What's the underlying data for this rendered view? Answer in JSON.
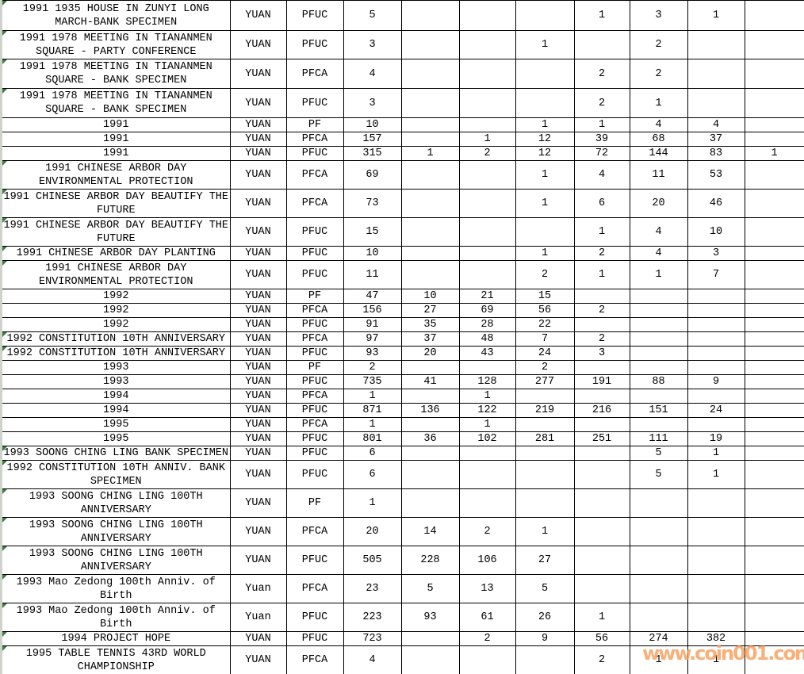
{
  "watermark": {
    "text": "www.coin001.com",
    "color": "#f69e5a"
  },
  "colors": {
    "grid_line": "#000000",
    "cell_background": "#ffffff",
    "comment_marker_green": "#3b7d3b",
    "edge_strip": "#cdd3cb",
    "watermark_orange": "#f69e5a"
  },
  "table": {
    "rows": [
      {
        "description": "1991 1935 HOUSE IN ZUNYI LONG\nMARCH-BANK SPECIMEN",
        "currency": "YUAN",
        "grade": "PFUC",
        "values": [
          "5",
          "",
          "",
          "",
          "1",
          "3",
          "1",
          ""
        ],
        "marker": true
      },
      {
        "description": "1991 1978 MEETING IN TIANANMEN\nSQUARE - PARTY CONFERENCE",
        "currency": "YUAN",
        "grade": "PFUC",
        "values": [
          "3",
          "",
          "",
          "1",
          "",
          "2",
          "",
          ""
        ],
        "marker": true
      },
      {
        "description": "1991 1978 MEETING IN TIANANMEN\nSQUARE - BANK SPECIMEN",
        "currency": "YUAN",
        "grade": "PFCA",
        "values": [
          "4",
          "",
          "",
          "",
          "2",
          "2",
          "",
          ""
        ],
        "marker": true
      },
      {
        "description": "1991 1978 MEETING IN TIANANMEN\nSQUARE - BANK SPECIMEN",
        "currency": "YUAN",
        "grade": "PFUC",
        "values": [
          "3",
          "",
          "",
          "",
          "2",
          "1",
          "",
          ""
        ],
        "marker": true
      },
      {
        "description": "1991",
        "currency": "YUAN",
        "grade": "PF",
        "values": [
          "10",
          "",
          "",
          "1",
          "1",
          "4",
          "4",
          ""
        ],
        "marker": false
      },
      {
        "description": "1991",
        "currency": "YUAN",
        "grade": "PFCA",
        "values": [
          "157",
          "",
          "1",
          "12",
          "39",
          "68",
          "37",
          ""
        ],
        "marker": false
      },
      {
        "description": "1991",
        "currency": "YUAN",
        "grade": "PFUC",
        "values": [
          "315",
          "1",
          "2",
          "12",
          "72",
          "144",
          "83",
          "1"
        ],
        "marker": false
      },
      {
        "description": "1991 CHINESE ARBOR DAY\nENVIRONMENTAL PROTECTION",
        "currency": "YUAN",
        "grade": "PFCA",
        "values": [
          "69",
          "",
          "",
          "1",
          "4",
          "11",
          "53",
          ""
        ],
        "marker": true
      },
      {
        "description": "1991 CHINESE ARBOR DAY BEAUTIFY THE\nFUTURE",
        "currency": "YUAN",
        "grade": "PFCA",
        "values": [
          "73",
          "",
          "",
          "1",
          "6",
          "20",
          "46",
          ""
        ],
        "marker": true
      },
      {
        "description": "1991 CHINESE ARBOR DAY BEAUTIFY THE\nFUTURE",
        "currency": "YUAN",
        "grade": "PFUC",
        "values": [
          "15",
          "",
          "",
          "",
          "1",
          "4",
          "10",
          ""
        ],
        "marker": true
      },
      {
        "description": "1991 CHINESE ARBOR DAY PLANTING",
        "currency": "YUAN",
        "grade": "PFUC",
        "values": [
          "10",
          "",
          "",
          "1",
          "2",
          "4",
          "3",
          ""
        ],
        "marker": true
      },
      {
        "description": "1991 CHINESE ARBOR DAY\nENVIRONMENTAL PROTECTION",
        "currency": "YUAN",
        "grade": "PFUC",
        "values": [
          "11",
          "",
          "",
          "2",
          "1",
          "1",
          "7",
          ""
        ],
        "marker": true
      },
      {
        "description": "1992",
        "currency": "YUAN",
        "grade": "PF",
        "values": [
          "47",
          "10",
          "21",
          "15",
          "",
          "",
          "",
          ""
        ],
        "marker": false
      },
      {
        "description": "1992",
        "currency": "YUAN",
        "grade": "PFCA",
        "values": [
          "156",
          "27",
          "69",
          "56",
          "2",
          "",
          "",
          ""
        ],
        "marker": false
      },
      {
        "description": "1992",
        "currency": "YUAN",
        "grade": "PFUC",
        "values": [
          "91",
          "35",
          "28",
          "22",
          "",
          "",
          "",
          ""
        ],
        "marker": false
      },
      {
        "description": "1992 CONSTITUTION 10TH ANNIVERSARY",
        "currency": "YUAN",
        "grade": "PFCA",
        "values": [
          "97",
          "37",
          "48",
          "7",
          "2",
          "",
          "",
          ""
        ],
        "marker": true
      },
      {
        "description": "1992 CONSTITUTION 10TH ANNIVERSARY",
        "currency": "YUAN",
        "grade": "PFUC",
        "values": [
          "93",
          "20",
          "43",
          "24",
          "3",
          "",
          "",
          ""
        ],
        "marker": true
      },
      {
        "description": "1993",
        "currency": "YUAN",
        "grade": "PF",
        "values": [
          "2",
          "",
          "",
          "2",
          "",
          "",
          "",
          ""
        ],
        "marker": false
      },
      {
        "description": "1993",
        "currency": "YUAN",
        "grade": "PFUC",
        "values": [
          "735",
          "41",
          "128",
          "277",
          "191",
          "88",
          "9",
          ""
        ],
        "marker": false
      },
      {
        "description": "1994",
        "currency": "YUAN",
        "grade": "PFCA",
        "values": [
          "1",
          "",
          "1",
          "",
          "",
          "",
          "",
          ""
        ],
        "marker": false
      },
      {
        "description": "1994",
        "currency": "YUAN",
        "grade": "PFUC",
        "values": [
          "871",
          "136",
          "122",
          "219",
          "216",
          "151",
          "24",
          ""
        ],
        "marker": false
      },
      {
        "description": "1995",
        "currency": "YUAN",
        "grade": "PFCA",
        "values": [
          "1",
          "",
          "1",
          "",
          "",
          "",
          "",
          ""
        ],
        "marker": false
      },
      {
        "description": "1995",
        "currency": "YUAN",
        "grade": "PFUC",
        "values": [
          "801",
          "36",
          "102",
          "281",
          "251",
          "111",
          "19",
          ""
        ],
        "marker": false
      },
      {
        "description": "1993 SOONG CHING LING BANK SPECIMEN",
        "currency": "YUAN",
        "grade": "PFUC",
        "values": [
          "6",
          "",
          "",
          "",
          "",
          "5",
          "1",
          ""
        ],
        "marker": true
      },
      {
        "description": "1992 CONSTITUTION 10TH ANNIV. BANK\nSPECIMEN",
        "currency": "YUAN",
        "grade": "PFUC",
        "values": [
          "6",
          "",
          "",
          "",
          "",
          "5",
          "1",
          ""
        ],
        "marker": true
      },
      {
        "description": "1993 SOONG CHING LING 100TH\nANNIVERSARY",
        "currency": "YUAN",
        "grade": "PF",
        "values": [
          "1",
          "",
          "",
          "",
          "",
          "",
          "",
          ""
        ],
        "marker": true
      },
      {
        "description": "1993 SOONG CHING LING 100TH\nANNIVERSARY",
        "currency": "YUAN",
        "grade": "PFCA",
        "values": [
          "20",
          "14",
          "2",
          "1",
          "",
          "",
          "",
          ""
        ],
        "marker": true
      },
      {
        "description": "1993 SOONG CHING LING 100TH\nANNIVERSARY",
        "currency": "YUAN",
        "grade": "PFUC",
        "values": [
          "505",
          "228",
          "106",
          "27",
          "",
          "",
          "",
          ""
        ],
        "marker": true
      },
      {
        "description": "1993 Mao Zedong 100th Anniv. of\nBirth",
        "currency": "Yuan",
        "grade": "PFCA",
        "values": [
          "23",
          "5",
          "13",
          "5",
          "",
          "",
          "",
          ""
        ],
        "marker": true
      },
      {
        "description": "1993 Mao Zedong 100th Anniv. of\nBirth",
        "currency": "Yuan",
        "grade": "PFUC",
        "values": [
          "223",
          "93",
          "61",
          "26",
          "1",
          "",
          "",
          ""
        ],
        "marker": true
      },
      {
        "description": "1994 PROJECT HOPE",
        "currency": "YUAN",
        "grade": "PFUC",
        "values": [
          "723",
          "",
          "2",
          "9",
          "56",
          "274",
          "382",
          ""
        ],
        "marker": true
      },
      {
        "description": "1995 TABLE TENNIS 43RD WORLD\nCHAMPIONSHIP",
        "currency": "YUAN",
        "grade": "PFCA",
        "values": [
          "4",
          "",
          "",
          "",
          "2",
          "1",
          "1",
          ""
        ],
        "marker": true
      },
      {
        "description": "",
        "currency": "",
        "grade": "",
        "values": [
          "",
          "",
          "",
          "",
          "",
          "",
          "",
          ""
        ],
        "marker": true
      }
    ]
  }
}
